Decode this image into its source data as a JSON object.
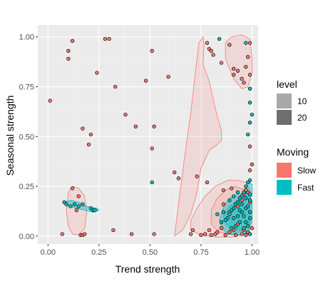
{
  "chart_data": {
    "type": "scatter",
    "title": "",
    "xlabel": "Trend strength",
    "ylabel": "Seasonal strength",
    "xlim": [
      -0.05,
      1.03
    ],
    "ylim": [
      -0.04,
      1.06
    ],
    "x_ticks": [
      0,
      0.25,
      0.5,
      0.75,
      1
    ],
    "x_tick_labels": [
      "0.00",
      "0.25",
      "0.50",
      "0.75",
      "1.00"
    ],
    "y_ticks": [
      0,
      0.25,
      0.5,
      0.75,
      1
    ],
    "y_tick_labels": [
      "0.00",
      "0.25",
      "0.50",
      "0.75",
      "1.00"
    ],
    "grid": true,
    "background": "#ebebeb",
    "legend_level": {
      "title": "level",
      "entries": [
        {
          "label": "10",
          "color": "#a9a9a9"
        },
        {
          "label": "20",
          "color": "#6e6e6e"
        }
      ]
    },
    "legend_moving": {
      "title": "Moving",
      "entries": [
        {
          "label": "Slow",
          "color": "#f8766d"
        },
        {
          "label": "Fast",
          "color": "#00bfc4"
        }
      ]
    },
    "density_regions": [
      {
        "group": "Slow",
        "points": [
          [
            0.1,
            0.22
          ],
          [
            0.12,
            0.25
          ],
          [
            0.15,
            0.24
          ],
          [
            0.18,
            0.2
          ],
          [
            0.19,
            0.12
          ],
          [
            0.18,
            0.04
          ],
          [
            0.15,
            0.005
          ],
          [
            0.12,
            0.01
          ],
          [
            0.1,
            0.05
          ],
          [
            0.09,
            0.12
          ]
        ]
      },
      {
        "group": "Slow",
        "points": [
          [
            0.87,
            0.89
          ],
          [
            0.87,
            0.97
          ],
          [
            0.9,
            1.0
          ],
          [
            0.95,
            1.01
          ],
          [
            0.99,
            0.99
          ],
          [
            1.0,
            0.9
          ],
          [
            1.0,
            0.82
          ],
          [
            0.98,
            0.75
          ],
          [
            0.95,
            0.74
          ],
          [
            0.91,
            0.79
          ]
        ]
      },
      {
        "group": "Slow",
        "points": [
          [
            0.62,
            0.0
          ],
          [
            0.64,
            0.16
          ],
          [
            0.67,
            0.4
          ],
          [
            0.7,
            0.62
          ],
          [
            0.72,
            0.8
          ],
          [
            0.74,
            0.97
          ],
          [
            0.76,
            1.0
          ],
          [
            0.765,
            0.96
          ],
          [
            0.76,
            0.86
          ],
          [
            0.79,
            0.78
          ],
          [
            0.82,
            0.64
          ],
          [
            0.85,
            0.53
          ],
          [
            0.85,
            0.48
          ],
          [
            0.83,
            0.46
          ],
          [
            0.79,
            0.43
          ],
          [
            0.75,
            0.34
          ],
          [
            0.73,
            0.22
          ],
          [
            0.7,
            0.11
          ],
          [
            0.66,
            0.03
          ]
        ]
      },
      {
        "group": "Slow",
        "points": [
          [
            0.7,
            0.08
          ],
          [
            0.73,
            0.14
          ],
          [
            0.77,
            0.2
          ],
          [
            0.82,
            0.25
          ],
          [
            0.88,
            0.28
          ],
          [
            0.93,
            0.28
          ],
          [
            0.97,
            0.27
          ],
          [
            0.99,
            0.23
          ],
          [
            1.0,
            0.14
          ],
          [
            1.0,
            0.05
          ],
          [
            0.97,
            0.01
          ],
          [
            0.9,
            -0.005
          ],
          [
            0.82,
            -0.005
          ],
          [
            0.75,
            0.005
          ],
          [
            0.7,
            0.03
          ]
        ]
      },
      {
        "group": "Slow",
        "points": [
          [
            0.8,
            0.13
          ],
          [
            0.83,
            0.19
          ],
          [
            0.87,
            0.23
          ],
          [
            0.92,
            0.25
          ],
          [
            0.97,
            0.23
          ],
          [
            0.99,
            0.17
          ],
          [
            0.99,
            0.08
          ],
          [
            0.96,
            0.03
          ],
          [
            0.9,
            0.01
          ],
          [
            0.84,
            0.02
          ],
          [
            0.8,
            0.06
          ]
        ]
      },
      {
        "group": "Fast",
        "points": [
          [
            0.08,
            0.17
          ],
          [
            0.11,
            0.18
          ],
          [
            0.15,
            0.17
          ],
          [
            0.19,
            0.15
          ],
          [
            0.24,
            0.14
          ],
          [
            0.25,
            0.13
          ],
          [
            0.22,
            0.12
          ],
          [
            0.18,
            0.13
          ],
          [
            0.14,
            0.14
          ],
          [
            0.1,
            0.15
          ]
        ]
      },
      {
        "group": "Fast",
        "points": [
          [
            0.84,
            0.08
          ],
          [
            0.86,
            0.15
          ],
          [
            0.89,
            0.19
          ],
          [
            0.93,
            0.21
          ],
          [
            0.97,
            0.22
          ],
          [
            1.0,
            0.18
          ],
          [
            1.0,
            0.08
          ],
          [
            0.98,
            0.02
          ],
          [
            0.93,
            0.005
          ],
          [
            0.88,
            0.01
          ],
          [
            0.85,
            0.04
          ]
        ]
      },
      {
        "group": "Fast",
        "points": [
          [
            0.86,
            0.1
          ],
          [
            0.89,
            0.15
          ],
          [
            0.93,
            0.18
          ],
          [
            0.97,
            0.18
          ],
          [
            0.99,
            0.13
          ],
          [
            0.99,
            0.06
          ],
          [
            0.96,
            0.03
          ],
          [
            0.91,
            0.03
          ],
          [
            0.87,
            0.06
          ]
        ]
      },
      {
        "group": "Fast",
        "points": [
          [
            0.96,
            0.2
          ],
          [
            0.98,
            0.27
          ],
          [
            1.0,
            0.26
          ],
          [
            1.0,
            0.2
          ],
          [
            0.98,
            0.18
          ]
        ]
      }
    ],
    "series": [
      {
        "name": "Slow",
        "color": "#f8766d",
        "points": [
          [
            0.01,
            0.68
          ],
          [
            0.1,
            0.93
          ],
          [
            0.12,
            0.98
          ],
          [
            0.1,
            0.89
          ],
          [
            0.28,
            0.99
          ],
          [
            0.3,
            0.99
          ],
          [
            0.51,
            0.93
          ],
          [
            0.24,
            0.82
          ],
          [
            0.59,
            0.8
          ],
          [
            0.33,
            0.75
          ],
          [
            0.48,
            0.78
          ],
          [
            0.38,
            0.61
          ],
          [
            0.43,
            0.55
          ],
          [
            0.17,
            0.54
          ],
          [
            0.52,
            0.55
          ],
          [
            0.21,
            0.51
          ],
          [
            0.2,
            0.46
          ],
          [
            0.51,
            0.44
          ],
          [
            0.62,
            0.32
          ],
          [
            0.64,
            0.29
          ],
          [
            0.73,
            0.3
          ],
          [
            0.12,
            0.24
          ],
          [
            0.15,
            0.2
          ],
          [
            0.78,
            0.27
          ],
          [
            0.07,
            0.01
          ],
          [
            0.14,
            0.13
          ],
          [
            0.16,
            0.005
          ],
          [
            0.17,
            0.005
          ],
          [
            0.18,
            0.01
          ],
          [
            0.32,
            0.03
          ],
          [
            0.41,
            0.01
          ],
          [
            0.52,
            0.01
          ],
          [
            0.7,
            0.01
          ],
          [
            0.71,
            0.03
          ],
          [
            0.75,
            0.005
          ],
          [
            0.77,
            0.01
          ],
          [
            0.79,
            0.03
          ],
          [
            0.8,
            0.005
          ],
          [
            0.82,
            0.01
          ],
          [
            0.83,
            0.02
          ],
          [
            0.85,
            0.04
          ],
          [
            0.87,
            0.005
          ],
          [
            0.89,
            0.02
          ],
          [
            0.91,
            0.03
          ],
          [
            0.92,
            0.005
          ],
          [
            0.93,
            0.06
          ],
          [
            0.95,
            0.01
          ],
          [
            0.96,
            0.03
          ],
          [
            0.97,
            0.005
          ],
          [
            0.98,
            0.02
          ],
          [
            0.99,
            0.01
          ],
          [
            1.0,
            0.04
          ],
          [
            0.86,
            0.16
          ],
          [
            0.89,
            0.12
          ],
          [
            0.93,
            0.15
          ],
          [
            0.95,
            0.18
          ],
          [
            0.98,
            0.22
          ],
          [
            0.99,
            0.17
          ],
          [
            0.78,
            0.97
          ],
          [
            0.79,
            0.94
          ],
          [
            0.8,
            0.93
          ],
          [
            0.81,
            0.91
          ],
          [
            0.85,
            0.87
          ],
          [
            0.89,
            0.96
          ],
          [
            0.91,
            0.84
          ],
          [
            0.91,
            0.81
          ],
          [
            0.93,
            0.83
          ],
          [
            0.95,
            0.79
          ],
          [
            0.96,
            0.77
          ],
          [
            0.97,
            0.85
          ],
          [
            0.98,
            0.9
          ],
          [
            0.99,
            0.81
          ],
          [
            0.99,
            0.97
          ],
          [
            0.99,
            0.45
          ],
          [
            1.0,
            0.36
          ],
          [
            0.99,
            0.33
          ],
          [
            0.97,
            0.23
          ],
          [
            0.96,
            0.21
          ],
          [
            0.9,
            0.24
          ],
          [
            0.86,
            0.23
          ]
        ]
      },
      {
        "name": "Fast",
        "color": "#00bfc4",
        "points": [
          [
            0.08,
            0.17
          ],
          [
            0.09,
            0.16
          ],
          [
            0.11,
            0.15
          ],
          [
            0.13,
            0.16
          ],
          [
            0.15,
            0.15
          ],
          [
            0.17,
            0.16
          ],
          [
            0.21,
            0.14
          ],
          [
            0.22,
            0.13
          ],
          [
            0.23,
            0.13
          ],
          [
            0.51,
            0.27
          ],
          [
            0.84,
            0.99
          ],
          [
            0.97,
            0.97
          ],
          [
            0.99,
            0.74
          ],
          [
            0.99,
            0.67
          ],
          [
            1.0,
            0.61
          ],
          [
            0.99,
            0.57
          ],
          [
            0.98,
            0.51
          ],
          [
            0.99,
            0.28
          ],
          [
            0.98,
            0.27
          ],
          [
            0.97,
            0.25
          ],
          [
            0.96,
            0.22
          ],
          [
            0.95,
            0.2
          ],
          [
            0.94,
            0.19
          ],
          [
            0.93,
            0.17
          ],
          [
            0.92,
            0.16
          ],
          [
            0.91,
            0.14
          ],
          [
            0.9,
            0.13
          ],
          [
            0.89,
            0.11
          ],
          [
            0.88,
            0.09
          ],
          [
            0.87,
            0.08
          ],
          [
            0.85,
            0.07
          ],
          [
            0.91,
            0.09
          ],
          [
            0.93,
            0.1
          ],
          [
            0.95,
            0.12
          ],
          [
            0.97,
            0.14
          ],
          [
            0.98,
            0.15
          ],
          [
            0.99,
            0.18
          ],
          [
            0.96,
            0.1
          ],
          [
            0.94,
            0.07
          ],
          [
            0.92,
            0.05
          ],
          [
            0.9,
            0.04
          ],
          [
            0.97,
            0.07
          ],
          [
            0.99,
            0.09
          ],
          [
            0.99,
            0.12
          ],
          [
            0.98,
            0.05
          ],
          [
            0.96,
            0.04
          ],
          [
            0.94,
            0.13
          ],
          [
            0.95,
            0.16
          ],
          [
            0.97,
            0.19
          ],
          [
            0.99,
            0.21
          ],
          [
            0.89,
            0.18
          ],
          [
            0.91,
            0.2
          ],
          [
            0.93,
            0.22
          ],
          [
            0.83,
            0.11
          ],
          [
            0.86,
            0.12
          ],
          [
            0.99,
            0.01
          ]
        ]
      }
    ]
  }
}
